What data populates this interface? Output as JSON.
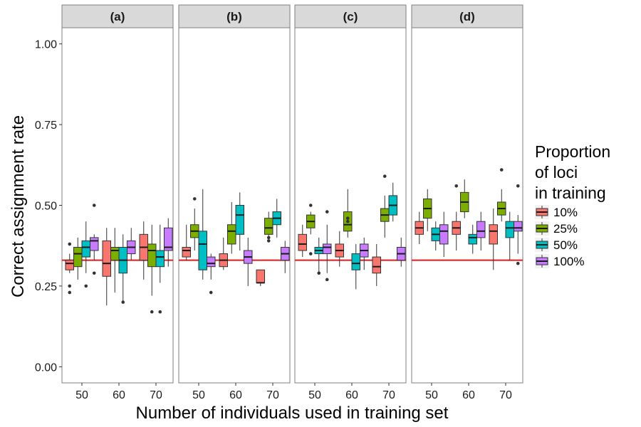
{
  "chart_data": {
    "type": "boxplot",
    "ylabel": "Correct assignment rate",
    "xlabel": "Number of individuals used in training set",
    "ylim": [
      -0.05,
      1.05
    ],
    "y_ticks": [
      0.0,
      0.25,
      0.5,
      0.75,
      1.0
    ],
    "y_tick_labels": [
      "0.00",
      "0.25",
      "0.50",
      "0.75",
      "1.00"
    ],
    "categories": [
      "50",
      "60",
      "70"
    ],
    "reference_line": 0.33,
    "reference_line_color": "#e31a1c",
    "legend": {
      "title_lines": [
        "Proportion",
        "of loci",
        "in training"
      ],
      "position": "right"
    },
    "series": [
      {
        "name": "10%",
        "color": "#f8766d"
      },
      {
        "name": "25%",
        "color": "#7cae00"
      },
      {
        "name": "50%",
        "color": "#00bfc4"
      },
      {
        "name": "100%",
        "color": "#c77cff"
      }
    ],
    "panels": [
      {
        "label": "(a)",
        "groups": [
          {
            "x": "50",
            "boxes": [
              {
                "min": 0.29,
                "q1": 0.3,
                "median": 0.32,
                "q3": 0.33,
                "max": 0.35,
                "outliers": [
                  0.23,
                  0.25,
                  0.38
                ]
              },
              {
                "min": 0.27,
                "q1": 0.31,
                "median": 0.35,
                "q3": 0.37,
                "max": 0.4,
                "outliers": []
              },
              {
                "min": 0.29,
                "q1": 0.34,
                "median": 0.37,
                "q3": 0.39,
                "max": 0.45,
                "outliers": [
                  0.25
                ]
              },
              {
                "min": 0.33,
                "q1": 0.36,
                "median": 0.39,
                "q3": 0.4,
                "max": 0.41,
                "outliers": [
                  0.29,
                  0.5
                ]
              }
            ]
          },
          {
            "x": "60",
            "boxes": [
              {
                "min": 0.19,
                "q1": 0.28,
                "median": 0.32,
                "q3": 0.39,
                "max": 0.43,
                "outliers": []
              },
              {
                "min": 0.23,
                "q1": 0.33,
                "median": 0.36,
                "q3": 0.37,
                "max": 0.43,
                "outliers": []
              },
              {
                "min": 0.2,
                "q1": 0.29,
                "median": 0.33,
                "q3": 0.37,
                "max": 0.41,
                "outliers": [
                  0.2
                ]
              },
              {
                "min": 0.33,
                "q1": 0.35,
                "median": 0.37,
                "q3": 0.39,
                "max": 0.43,
                "outliers": []
              }
            ]
          },
          {
            "x": "70",
            "boxes": [
              {
                "min": 0.27,
                "q1": 0.33,
                "median": 0.37,
                "q3": 0.41,
                "max": 0.45,
                "outliers": []
              },
              {
                "min": 0.22,
                "q1": 0.31,
                "median": 0.36,
                "q3": 0.38,
                "max": 0.44,
                "outliers": [
                  0.17
                ]
              },
              {
                "min": 0.26,
                "q1": 0.31,
                "median": 0.34,
                "q3": 0.36,
                "max": 0.44,
                "outliers": [
                  0.17
                ]
              },
              {
                "min": 0.31,
                "q1": 0.36,
                "median": 0.37,
                "q3": 0.43,
                "max": 0.46,
                "outliers": []
              }
            ]
          }
        ]
      },
      {
        "label": "(b)",
        "groups": [
          {
            "x": "50",
            "boxes": [
              {
                "min": 0.33,
                "q1": 0.34,
                "median": 0.36,
                "q3": 0.37,
                "max": 0.44,
                "outliers": []
              },
              {
                "min": 0.36,
                "q1": 0.4,
                "median": 0.42,
                "q3": 0.44,
                "max": 0.49,
                "outliers": [
                  0.52
                ]
              },
              {
                "min": 0.27,
                "q1": 0.3,
                "median": 0.38,
                "q3": 0.42,
                "max": 0.55,
                "outliers": []
              },
              {
                "min": 0.27,
                "q1": 0.31,
                "median": 0.32,
                "q3": 0.34,
                "max": 0.35,
                "outliers": [
                  0.23
                ]
              }
            ]
          },
          {
            "x": "60",
            "boxes": [
              {
                "min": 0.3,
                "q1": 0.31,
                "median": 0.33,
                "q3": 0.35,
                "max": 0.4,
                "outliers": []
              },
              {
                "min": 0.35,
                "q1": 0.38,
                "median": 0.42,
                "q3": 0.44,
                "max": 0.51,
                "outliers": []
              },
              {
                "min": 0.36,
                "q1": 0.41,
                "median": 0.47,
                "q3": 0.5,
                "max": 0.54,
                "outliers": []
              },
              {
                "min": 0.25,
                "q1": 0.32,
                "median": 0.34,
                "q3": 0.36,
                "max": 0.4,
                "outliers": []
              }
            ]
          },
          {
            "x": "70",
            "boxes": [
              {
                "min": 0.25,
                "q1": 0.26,
                "median": 0.26,
                "q3": 0.3,
                "max": 0.3,
                "outliers": []
              },
              {
                "min": 0.4,
                "q1": 0.41,
                "median": 0.43,
                "q3": 0.46,
                "max": 0.48,
                "outliers": [
                  0.39,
                  0.4
                ]
              },
              {
                "min": 0.4,
                "q1": 0.44,
                "median": 0.46,
                "q3": 0.48,
                "max": 0.52,
                "outliers": []
              },
              {
                "min": 0.29,
                "q1": 0.33,
                "median": 0.35,
                "q3": 0.37,
                "max": 0.39,
                "outliers": []
              }
            ]
          }
        ]
      },
      {
        "label": "(c)",
        "groups": [
          {
            "x": "50",
            "boxes": [
              {
                "min": 0.34,
                "q1": 0.36,
                "median": 0.38,
                "q3": 0.41,
                "max": 0.44,
                "outliers": []
              },
              {
                "min": 0.41,
                "q1": 0.43,
                "median": 0.45,
                "q3": 0.47,
                "max": 0.48,
                "outliers": [
                  0.35,
                  0.5
                ]
              },
              {
                "min": 0.29,
                "q1": 0.35,
                "median": 0.36,
                "q3": 0.37,
                "max": 0.4,
                "outliers": [
                  0.29
                ]
              },
              {
                "min": 0.29,
                "q1": 0.35,
                "median": 0.37,
                "q3": 0.38,
                "max": 0.44,
                "outliers": [
                  0.27,
                  0.48
                ]
              }
            ]
          },
          {
            "x": "60",
            "boxes": [
              {
                "min": 0.31,
                "q1": 0.34,
                "median": 0.36,
                "q3": 0.38,
                "max": 0.42,
                "outliers": []
              },
              {
                "min": 0.4,
                "q1": 0.42,
                "median": 0.44,
                "q3": 0.48,
                "max": 0.55,
                "outliers": [
                  0.45,
                  0.46
                ]
              },
              {
                "min": 0.24,
                "q1": 0.3,
                "median": 0.32,
                "q3": 0.35,
                "max": 0.38,
                "outliers": []
              },
              {
                "min": 0.3,
                "q1": 0.34,
                "median": 0.36,
                "q3": 0.38,
                "max": 0.4,
                "outliers": []
              }
            ]
          },
          {
            "x": "70",
            "boxes": [
              {
                "min": 0.25,
                "q1": 0.29,
                "median": 0.31,
                "q3": 0.34,
                "max": 0.38,
                "outliers": []
              },
              {
                "min": 0.4,
                "q1": 0.45,
                "median": 0.47,
                "q3": 0.49,
                "max": 0.53,
                "outliers": [
                  0.59
                ]
              },
              {
                "min": 0.45,
                "q1": 0.47,
                "median": 0.5,
                "q3": 0.53,
                "max": 0.57,
                "outliers": []
              },
              {
                "min": 0.31,
                "q1": 0.33,
                "median": 0.35,
                "q3": 0.37,
                "max": 0.4,
                "outliers": []
              }
            ]
          }
        ]
      },
      {
        "label": "(d)",
        "groups": [
          {
            "x": "50",
            "boxes": [
              {
                "min": 0.38,
                "q1": 0.41,
                "median": 0.43,
                "q3": 0.45,
                "max": 0.48,
                "outliers": []
              },
              {
                "min": 0.42,
                "q1": 0.46,
                "median": 0.49,
                "q3": 0.52,
                "max": 0.55,
                "outliers": []
              },
              {
                "min": 0.36,
                "q1": 0.39,
                "median": 0.41,
                "q3": 0.43,
                "max": 0.45,
                "outliers": []
              },
              {
                "min": 0.34,
                "q1": 0.38,
                "median": 0.42,
                "q3": 0.44,
                "max": 0.48,
                "outliers": []
              }
            ]
          },
          {
            "x": "60",
            "boxes": [
              {
                "min": 0.36,
                "q1": 0.41,
                "median": 0.43,
                "q3": 0.45,
                "max": 0.48,
                "outliers": [
                  0.56
                ]
              },
              {
                "min": 0.46,
                "q1": 0.48,
                "median": 0.51,
                "q3": 0.54,
                "max": 0.58,
                "outliers": []
              },
              {
                "min": 0.35,
                "q1": 0.38,
                "median": 0.4,
                "q3": 0.41,
                "max": 0.44,
                "outliers": []
              },
              {
                "min": 0.36,
                "q1": 0.4,
                "median": 0.42,
                "q3": 0.45,
                "max": 0.48,
                "outliers": []
              }
            ]
          },
          {
            "x": "70",
            "boxes": [
              {
                "min": 0.3,
                "q1": 0.38,
                "median": 0.42,
                "q3": 0.44,
                "max": 0.49,
                "outliers": []
              },
              {
                "min": 0.45,
                "q1": 0.47,
                "median": 0.49,
                "q3": 0.51,
                "max": 0.55,
                "outliers": [
                  0.61
                ]
              },
              {
                "min": 0.33,
                "q1": 0.4,
                "median": 0.43,
                "q3": 0.45,
                "max": 0.48,
                "outliers": []
              },
              {
                "min": 0.35,
                "q1": 0.42,
                "median": 0.43,
                "q3": 0.45,
                "max": 0.47,
                "outliers": [
                  0.32,
                  0.56
                ]
              }
            ]
          }
        ]
      }
    ]
  }
}
